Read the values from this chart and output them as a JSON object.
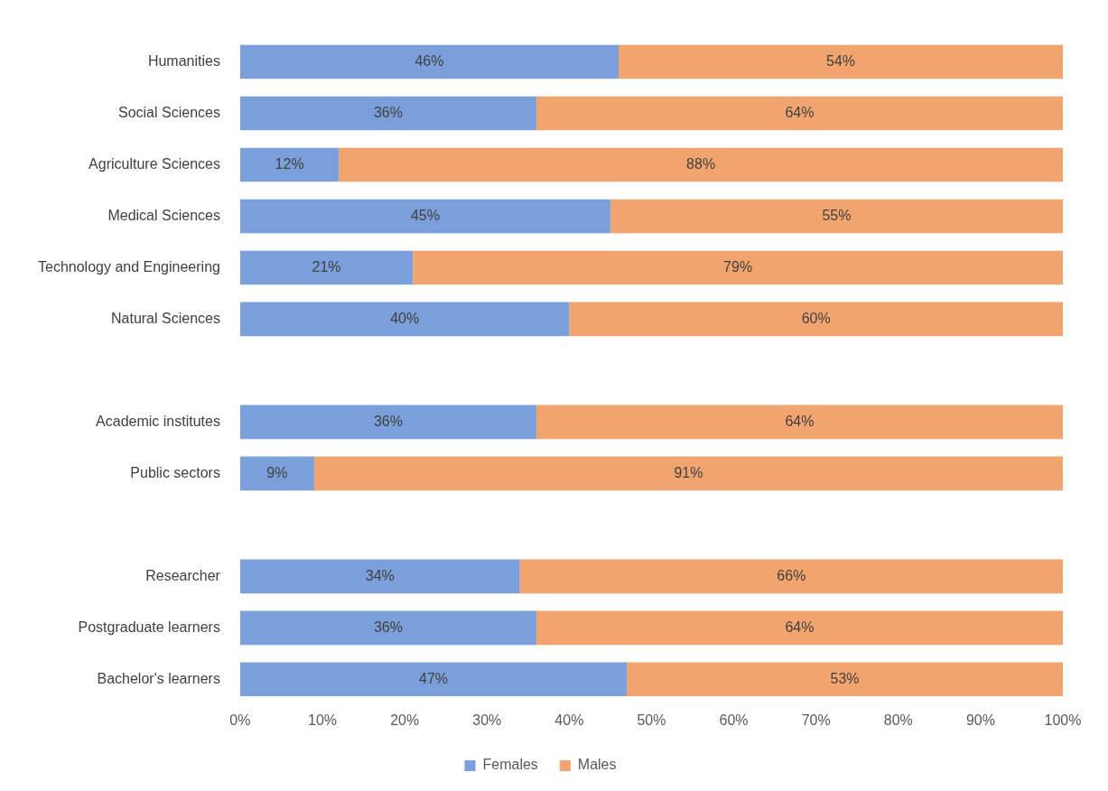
{
  "chart_data": {
    "type": "bar",
    "orientation": "horizontal",
    "stacked": true,
    "categories": [
      "Humanities",
      "Social Sciences",
      "Agriculture Sciences",
      "Medical Sciences",
      "Technology and Engineering",
      "Natural Sciences",
      null,
      "Academic institutes",
      "Public sectors",
      null,
      "Researcher",
      "Postgraduate learners",
      "Bachelor's learners"
    ],
    "series": [
      {
        "name": "Females",
        "color": "#7b9fda",
        "values": [
          46,
          36,
          12,
          45,
          21,
          40,
          null,
          36,
          9,
          null,
          34,
          36,
          47
        ],
        "value_labels": [
          "46%",
          "36%",
          "12%",
          "45%",
          "21%",
          "40%",
          null,
          "36%",
          "9%",
          null,
          "34%",
          "36%",
          "47%"
        ]
      },
      {
        "name": "Males",
        "color": "#f2a46e",
        "values": [
          54,
          64,
          88,
          55,
          79,
          60,
          null,
          64,
          91,
          null,
          66,
          64,
          53
        ],
        "value_labels": [
          "54%",
          "64%",
          "88%",
          "55%",
          "79%",
          "60%",
          null,
          "64%",
          "91%",
          null,
          "66%",
          "64%",
          "53%"
        ]
      }
    ],
    "xlim": [
      0,
      100
    ],
    "xticks": [
      {
        "value": 0,
        "label": "0%"
      },
      {
        "value": 10,
        "label": "10%"
      },
      {
        "value": 20,
        "label": "20%"
      },
      {
        "value": 30,
        "label": "30%"
      },
      {
        "value": 40,
        "label": "40%"
      },
      {
        "value": 50,
        "label": "50%"
      },
      {
        "value": 60,
        "label": "60%"
      },
      {
        "value": 70,
        "label": "70%"
      },
      {
        "value": 80,
        "label": "80%"
      },
      {
        "value": 90,
        "label": "90%"
      },
      {
        "value": 100,
        "label": "100%"
      }
    ],
    "grid": false,
    "legend": "bottom"
  }
}
